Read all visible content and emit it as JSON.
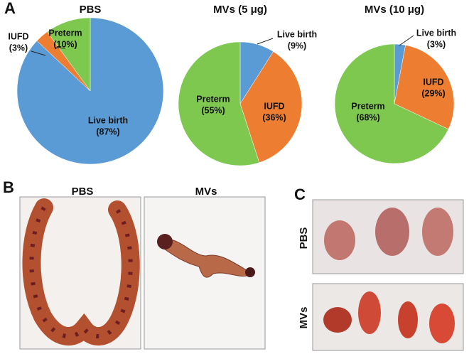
{
  "chart_data": [
    {
      "type": "pie",
      "title": "PBS",
      "categories": [
        "Live birth",
        "IUFD",
        "Preterm"
      ],
      "values": [
        87,
        3,
        10
      ],
      "value_labels": [
        "(87%)",
        "(3%)",
        "(10%)"
      ],
      "colors": [
        "#5b9bd5",
        "#ed7d31",
        "#7ec850"
      ]
    },
    {
      "type": "pie",
      "title": "MVs (5 μg)",
      "categories": [
        "Live birth",
        "IUFD",
        "Preterm"
      ],
      "values": [
        9,
        36,
        55
      ],
      "value_labels": [
        "(9%)",
        "(36%)",
        "(55%)"
      ],
      "colors": [
        "#5b9bd5",
        "#ed7d31",
        "#7ec850"
      ]
    },
    {
      "type": "pie",
      "title": "MVs (10 μg)",
      "categories": [
        "Live birth",
        "IUFD",
        "Preterm"
      ],
      "values": [
        3,
        29,
        68
      ],
      "value_labels": [
        "(3%)",
        "(29%)",
        "(68%)"
      ],
      "colors": [
        "#5b9bd5",
        "#ed7d31",
        "#7ec850"
      ]
    }
  ],
  "panel_labels": [
    "A",
    "B",
    "C"
  ],
  "photo_labels": {
    "B": [
      "PBS",
      "MVs"
    ],
    "C": [
      "PBS",
      "MVs"
    ]
  }
}
